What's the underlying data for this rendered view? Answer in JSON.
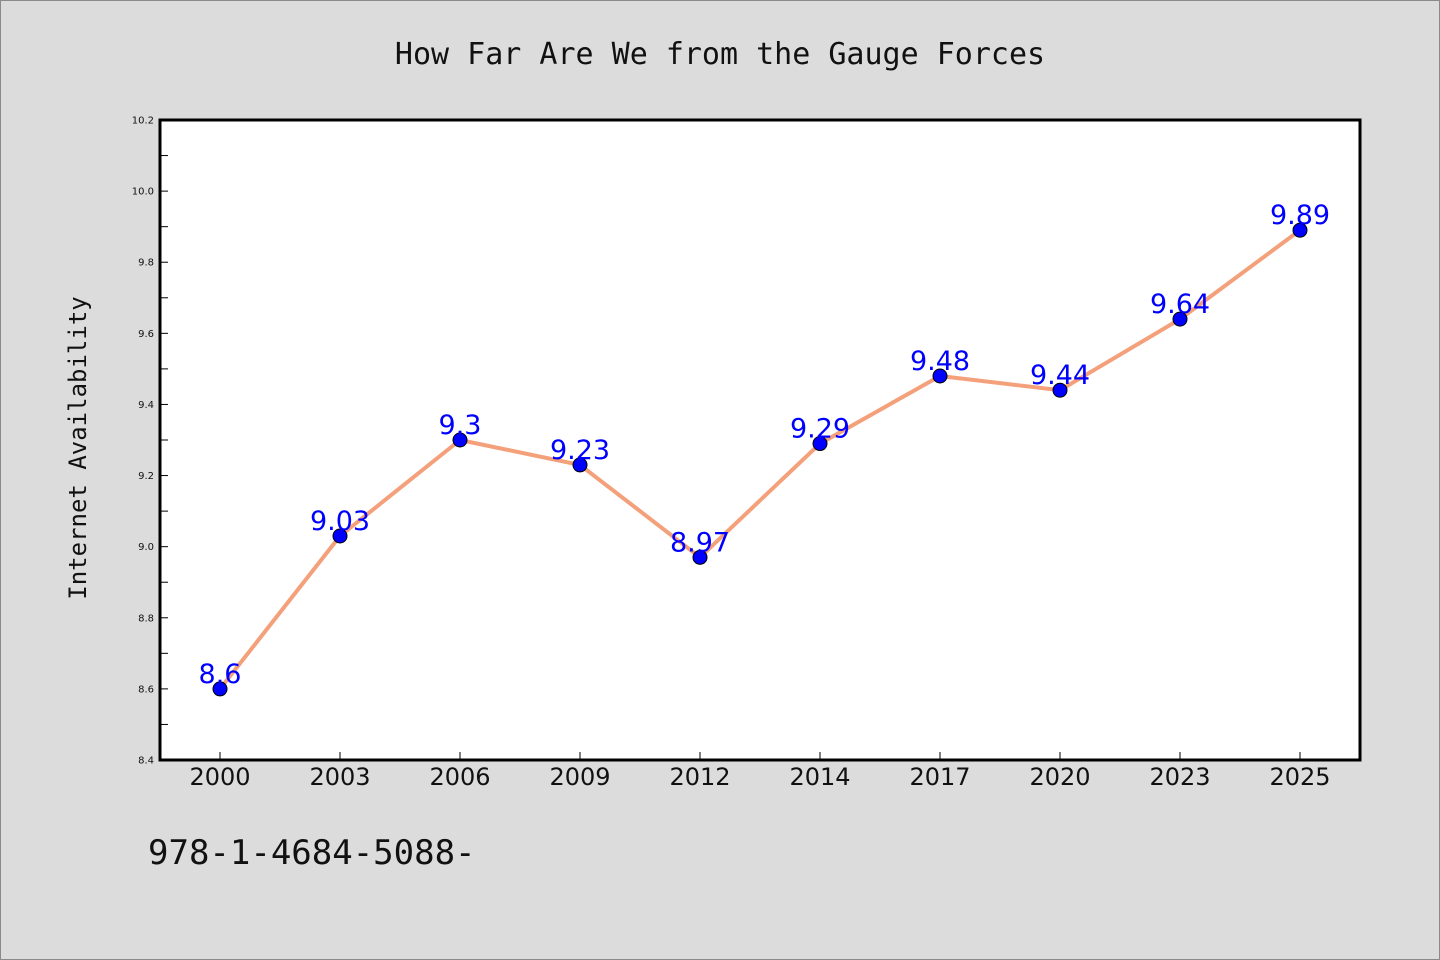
{
  "chart_data": {
    "type": "line",
    "title": "How Far Are We from the Gauge Forces",
    "xlabel": "",
    "ylabel": "Internet Availability",
    "categories": [
      "2000",
      "2003",
      "2006",
      "2009",
      "2012",
      "2014",
      "2017",
      "2020",
      "2023",
      "2025"
    ],
    "values": [
      8.6,
      9.03,
      9.3,
      9.23,
      8.97,
      9.29,
      9.48,
      9.44,
      9.64,
      9.89
    ],
    "data_labels": [
      "8.6",
      "9.03",
      "9.3",
      "9.23",
      "8.97",
      "9.29",
      "9.48",
      "9.44",
      "9.64",
      "9.89"
    ],
    "ylim": [
      8.4,
      10.2
    ],
    "yticks": [
      "8.4",
      "8.6",
      "8.8",
      "9.0",
      "9.2",
      "9.4",
      "9.6",
      "9.8",
      "10.0",
      "10.2"
    ],
    "grid": false,
    "legend": "none",
    "colors": {
      "line": "#f4a07a",
      "marker": "#0000ff",
      "labels": "#0000ff",
      "plot_background": "#ffffff",
      "figure_background": "#dcdcdc"
    }
  },
  "footer": {
    "text": "978-1-4684-5088-"
  }
}
